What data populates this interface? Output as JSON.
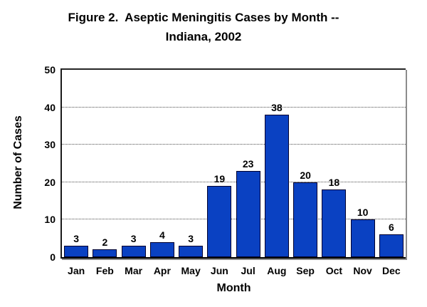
{
  "figure": {
    "title_line1": "Figure 2.  Aseptic Meningitis Cases by Month --",
    "title_line2": "Indiana, 2002"
  },
  "chart_data": {
    "type": "bar",
    "title": "Figure 2. Aseptic Meningitis Cases by Month -- Indiana, 2002",
    "categories": [
      "Jan",
      "Feb",
      "Mar",
      "Apr",
      "May",
      "Jun",
      "Jul",
      "Aug",
      "Sep",
      "Oct",
      "Nov",
      "Dec"
    ],
    "values": [
      3,
      2,
      3,
      4,
      3,
      19,
      23,
      38,
      20,
      18,
      10,
      6
    ],
    "xlabel": "Month",
    "ylabel": "Number of Cases",
    "ylim": [
      0,
      50
    ],
    "yticks": [
      0,
      10,
      20,
      30,
      40,
      50
    ],
    "gridlines": [
      10,
      20,
      30,
      40
    ],
    "grid": "horizontal-dotted",
    "legend_position": "none",
    "data_labels": true,
    "colors": {
      "bar_fill": "#0a41c2",
      "bar_border": "#01012e",
      "gridline": "#4d4d4d",
      "axis": "#000000",
      "plot_shadow": "#8c8c8c",
      "background": "#ffffff",
      "text": "#000000"
    }
  }
}
